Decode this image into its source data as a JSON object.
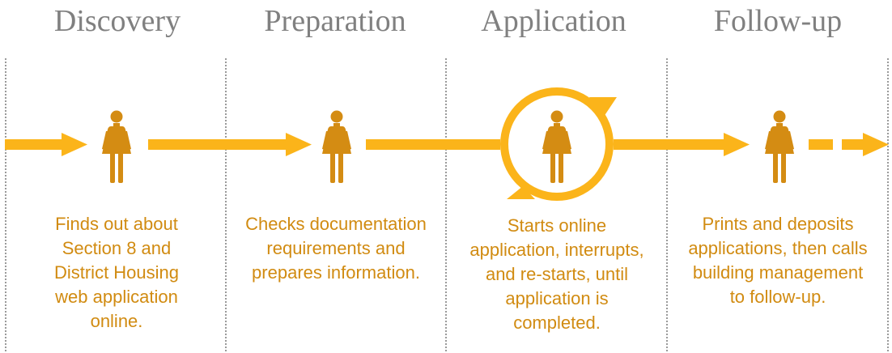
{
  "colors": {
    "accent": "#fbb41a",
    "figure": "#d48c13",
    "text_orange": "#d18b11",
    "title_gray": "#808080",
    "divider_gray": "#9a9a9a"
  },
  "stages": [
    {
      "title": "Discovery",
      "icon": "person-icon",
      "description": [
        "Finds out about",
        "Section 8 and",
        "District Housing",
        "web application",
        "online."
      ]
    },
    {
      "title": "Preparation",
      "icon": "person-icon",
      "description": [
        "Checks documentation",
        "requirements and",
        "prepares information."
      ]
    },
    {
      "title": "Application",
      "icon": "person-icon",
      "description": [
        "Starts online",
        "application, interrupts,",
        "and re-starts, until",
        "application is",
        "completed."
      ]
    },
    {
      "title": "Follow-up",
      "icon": "person-icon",
      "description": [
        "Prints and deposits",
        "applications, then calls",
        "building management",
        "to follow-up."
      ]
    }
  ]
}
